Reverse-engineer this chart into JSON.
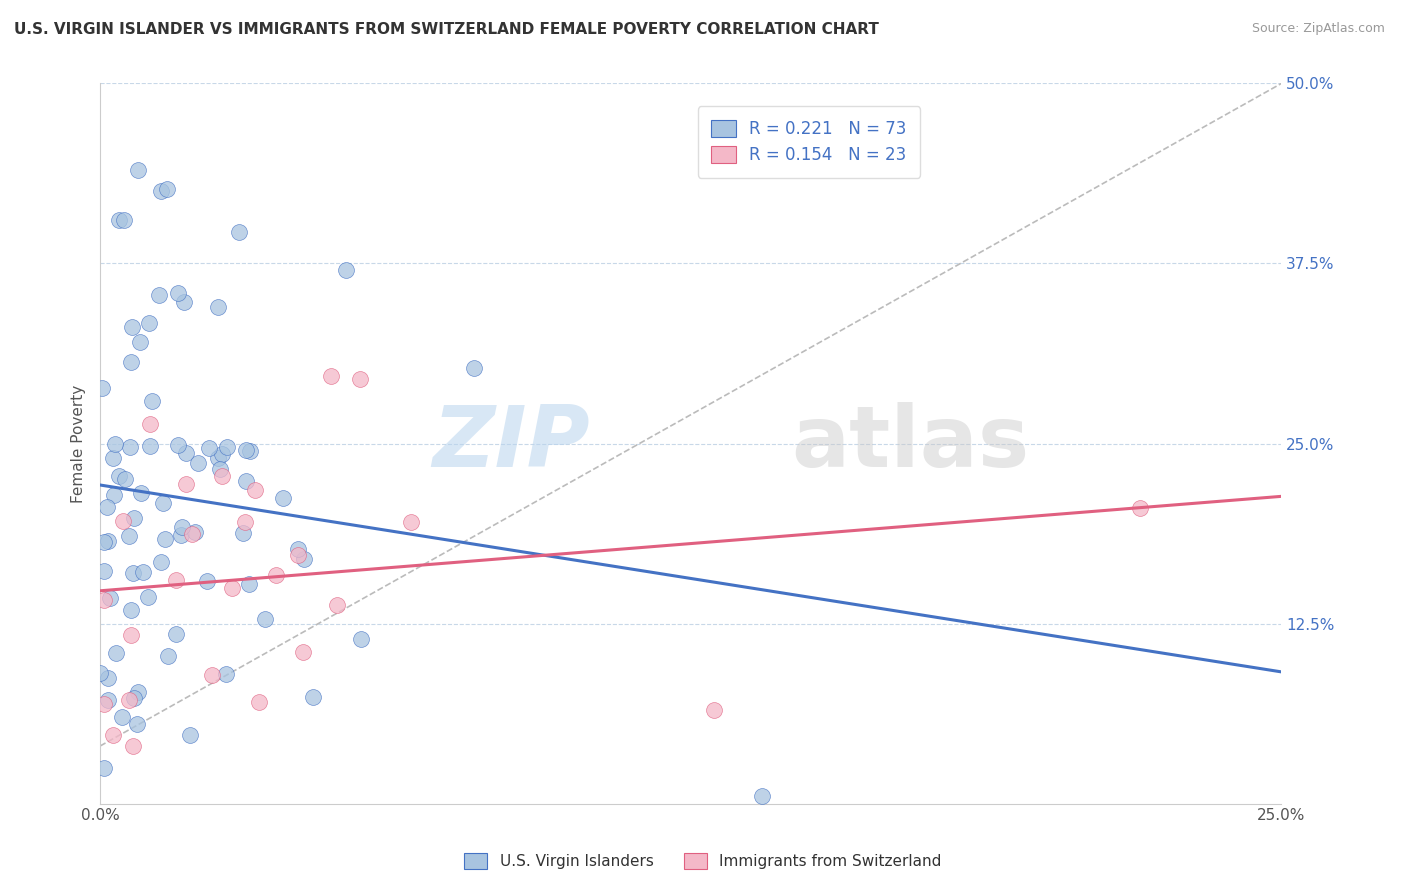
{
  "title": "U.S. VIRGIN ISLANDER VS IMMIGRANTS FROM SWITZERLAND FEMALE POVERTY CORRELATION CHART",
  "source": "Source: ZipAtlas.com",
  "ylabel": "Female Poverty",
  "xlim": [
    0.0,
    0.25
  ],
  "ylim": [
    0.0,
    0.5
  ],
  "ytick_positions": [
    0.125,
    0.25,
    0.375,
    0.5
  ],
  "legend_r1": "R = 0.221",
  "legend_n1": "N = 73",
  "legend_r2": "R = 0.154",
  "legend_n2": "N = 23",
  "color_blue": "#a8c4e0",
  "color_pink": "#f4b8c8",
  "line_color_blue": "#4472c4",
  "line_color_pink": "#e06080",
  "background_color": "#ffffff",
  "watermark_zip": "ZIP",
  "watermark_atlas": "atlas",
  "grid_color": "#c8d8e8",
  "legend_label_color": "#4472c4"
}
